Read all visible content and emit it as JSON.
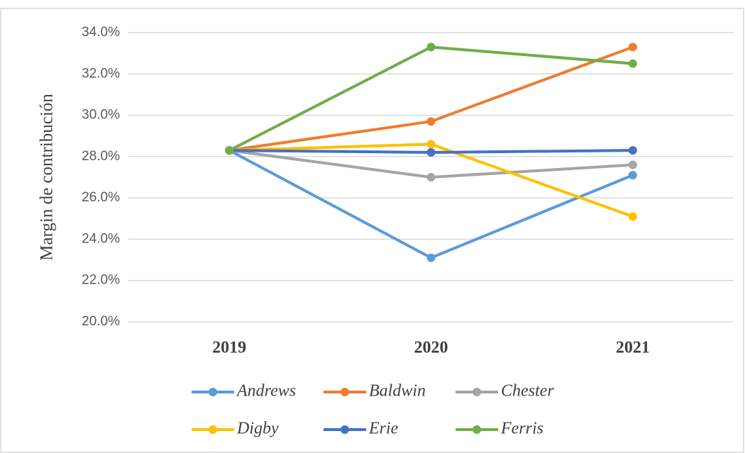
{
  "chart_data": {
    "type": "line",
    "y_label": "Margin de contribución",
    "categories": [
      "2019",
      "2020",
      "2021"
    ],
    "series": [
      {
        "name": "Andrews",
        "color": "#5b9bd5",
        "values": [
          28.3,
          23.1,
          27.1
        ]
      },
      {
        "name": "Baldwin",
        "color": "#ed7d31",
        "values": [
          28.3,
          29.7,
          33.3
        ]
      },
      {
        "name": "Chester",
        "color": "#a5a5a5",
        "values": [
          28.3,
          27.0,
          27.6
        ]
      },
      {
        "name": "Digby",
        "color": "#ffc000",
        "values": [
          28.3,
          28.6,
          25.1
        ]
      },
      {
        "name": "Erie",
        "color": "#4472c4",
        "values": [
          28.3,
          28.2,
          28.3
        ]
      },
      {
        "name": "Ferris",
        "color": "#70ad47",
        "values": [
          28.3,
          33.3,
          32.5
        ]
      }
    ],
    "ylim": [
      20,
      34
    ],
    "yticks": [
      {
        "value": 20,
        "label": "20.0%"
      },
      {
        "value": 22,
        "label": "22.0%"
      },
      {
        "value": 24,
        "label": "24.0%"
      },
      {
        "value": 26,
        "label": "26.0%"
      },
      {
        "value": 28,
        "label": "28.0%"
      },
      {
        "value": 30,
        "label": "30.0%"
      },
      {
        "value": 32,
        "label": "32.0%"
      },
      {
        "value": 34,
        "label": "34.0%"
      }
    ],
    "grid": true,
    "legend": "bottom"
  }
}
